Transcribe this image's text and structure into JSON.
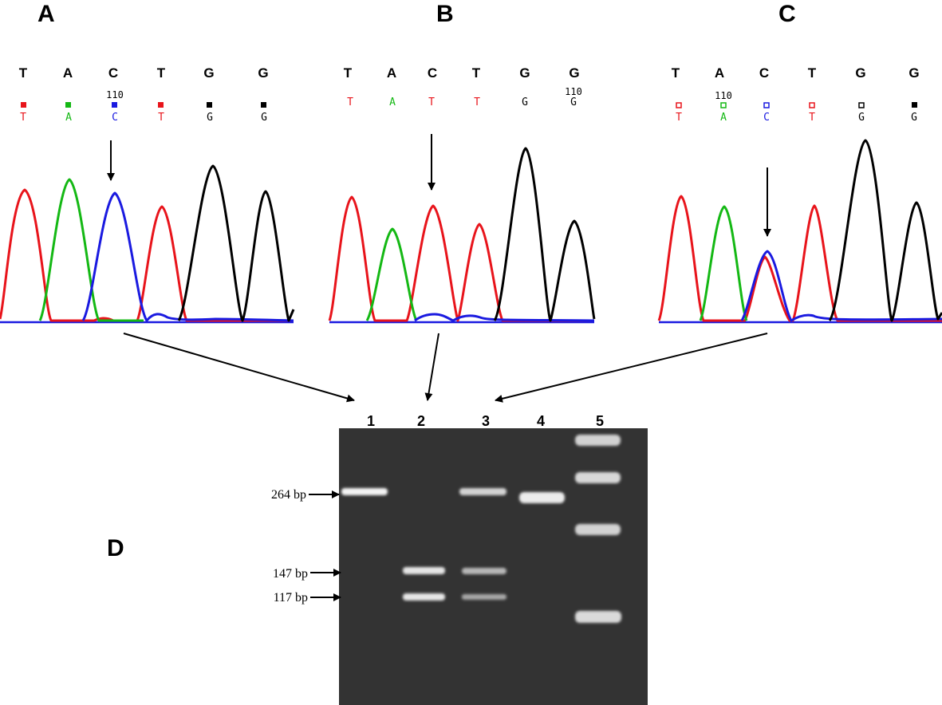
{
  "panels": [
    {
      "letter": "A",
      "header": [
        "T",
        "A",
        "C",
        "T",
        "G",
        "G"
      ],
      "calls": [
        "T",
        "A",
        "C",
        "T",
        "G",
        "G"
      ],
      "call_colors": [
        "#e8141b",
        "#14b814",
        "#1a1ae0",
        "#e8141b",
        "#000000",
        "#000000"
      ],
      "squares": "filled",
      "position_label": "110",
      "position_index": 2
    },
    {
      "letter": "B",
      "header": [
        "T",
        "A",
        "C",
        "T",
        "G",
        "G"
      ],
      "calls": [
        "T",
        "A",
        "T",
        "T",
        "G",
        "G"
      ],
      "call_colors": [
        "#e8141b",
        "#14b814",
        "#e8141b",
        "#e8141b",
        "#000000",
        "#000000"
      ],
      "squares": "none",
      "position_label": "110",
      "position_index": 5
    },
    {
      "letter": "C",
      "header": [
        "T",
        "A",
        "C",
        "T",
        "G",
        "G"
      ],
      "calls": [
        "T",
        "A",
        "C",
        "T",
        "G",
        "G"
      ],
      "call_colors": [
        "#e8141b",
        "#14b814",
        "#1a1ae0",
        "#e8141b",
        "#000000",
        "#000000"
      ],
      "squares": "hollow",
      "position_label": "110",
      "position_index": 1
    }
  ],
  "gel": {
    "letter": "D",
    "lanes": [
      "1",
      "2",
      "3",
      "4",
      "5"
    ],
    "size_markers": [
      "264 bp",
      "147 bp",
      "117 bp"
    ]
  },
  "colors": {
    "T": "#e8141b",
    "A": "#14b814",
    "C": "#1a1ae0",
    "G": "#000000",
    "gel_background": "#333333",
    "band": "#f4f4f4"
  }
}
